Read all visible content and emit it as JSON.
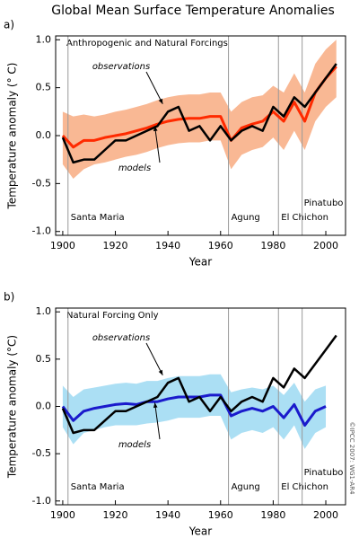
{
  "credit": "©IPCC 2007: WG1-AR4",
  "chart_data": [
    {
      "type": "line",
      "title": "Global Mean Surface Temperature Anomalies",
      "panel_label": "a)",
      "plot_label": "Anthropogenic and Natural Forcings",
      "xlabel": "Year",
      "ylabel": "Temperature anomaly (° C)",
      "xlim": [
        1897.3,
        2007.5
      ],
      "ylim": [
        -1.04,
        1.04
      ],
      "xticks": [
        1900,
        1920,
        1940,
        1960,
        1980,
        2000
      ],
      "yticks": [
        {
          "value": 1,
          "label": "1.0"
        },
        0.5,
        {
          "value": 0,
          "label": "0.0"
        },
        -0.5,
        {
          "value": -1,
          "label": "-1.0"
        }
      ],
      "x": [
        1900,
        1904,
        1908,
        1912,
        1916,
        1920,
        1924,
        1928,
        1932,
        1936,
        1940,
        1944,
        1948,
        1952,
        1956,
        1960,
        1964,
        1968,
        1972,
        1976,
        1980,
        1984,
        1988,
        1992,
        1996,
        2000,
        2004
      ],
      "series": [
        {
          "name": "observations",
          "color": "#000000",
          "values": [
            -0.02,
            -0.28,
            -0.25,
            -0.25,
            -0.15,
            -0.05,
            -0.05,
            0.0,
            0.05,
            0.1,
            0.25,
            0.3,
            0.05,
            0.1,
            -0.05,
            0.1,
            -0.05,
            0.05,
            0.1,
            0.05,
            0.3,
            0.2,
            0.4,
            0.3,
            0.45,
            0.6,
            0.75
          ]
        },
        {
          "name": "models",
          "color": "#ff2a00",
          "band_color": "#f7a070",
          "values": [
            0,
            -0.12,
            -0.05,
            -0.05,
            -0.02,
            0,
            0.02,
            0.05,
            0.08,
            0.12,
            0.15,
            0.17,
            0.18,
            0.18,
            0.2,
            0.2,
            -0.05,
            0.08,
            0.12,
            0.15,
            0.25,
            0.15,
            0.35,
            0.15,
            0.45,
            0.6,
            0.72
          ],
          "band_low": [
            -0.3,
            -0.45,
            -0.35,
            -0.3,
            -0.28,
            -0.25,
            -0.22,
            -0.2,
            -0.17,
            -0.13,
            -0.1,
            -0.08,
            -0.07,
            -0.07,
            -0.05,
            -0.05,
            -0.35,
            -0.2,
            -0.15,
            -0.12,
            -0.02,
            -0.15,
            0.05,
            -0.15,
            0.15,
            0.3,
            0.4
          ],
          "band_high": [
            0.25,
            0.2,
            0.22,
            0.2,
            0.22,
            0.25,
            0.27,
            0.3,
            0.33,
            0.37,
            0.4,
            0.42,
            0.43,
            0.43,
            0.45,
            0.45,
            0.25,
            0.35,
            0.4,
            0.42,
            0.52,
            0.45,
            0.65,
            0.45,
            0.75,
            0.9,
            1.0
          ]
        }
      ],
      "events": [
        {
          "x": 1902,
          "label": "Santa Maria"
        },
        {
          "x": 1963,
          "label": "Agung"
        },
        {
          "x": 1982,
          "label": "El Chichon"
        },
        {
          "x": 1991,
          "label": "Pinatubo"
        }
      ]
    },
    {
      "type": "line",
      "panel_label": "b)",
      "plot_label": "Natural Forcing Only",
      "xlabel": "Year",
      "ylabel": "Temperature anomaly (°C)",
      "xlim": [
        1897.3,
        2007.5
      ],
      "ylim": [
        -1.04,
        1.04
      ],
      "xticks": [
        1900,
        1920,
        1940,
        1960,
        1980,
        2000
      ],
      "yticks": [
        {
          "value": 1,
          "label": "1.0"
        },
        0.5,
        {
          "value": 0,
          "label": "0.0"
        },
        -0.5,
        {
          "value": -1,
          "label": "-1.0"
        }
      ],
      "x": [
        1900,
        1904,
        1908,
        1912,
        1916,
        1920,
        1924,
        1928,
        1932,
        1936,
        1940,
        1944,
        1948,
        1952,
        1956,
        1960,
        1964,
        1968,
        1972,
        1976,
        1980,
        1984,
        1988,
        1992,
        1996,
        2000,
        2004
      ],
      "series": [
        {
          "name": "observations",
          "color": "#000000",
          "values": [
            -0.02,
            -0.28,
            -0.25,
            -0.25,
            -0.15,
            -0.05,
            -0.05,
            0.0,
            0.05,
            0.1,
            0.25,
            0.3,
            0.05,
            0.1,
            -0.05,
            0.1,
            -0.05,
            0.05,
            0.1,
            0.05,
            0.3,
            0.2,
            0.4,
            0.3,
            0.45,
            0.6,
            0.75
          ]
        },
        {
          "name": "models",
          "color": "#1a1acc",
          "band_color": "#8fd4f0",
          "values": [
            0,
            -0.15,
            -0.05,
            -0.02,
            0,
            0.02,
            0.03,
            0.02,
            0.05,
            0.05,
            0.08,
            0.1,
            0.1,
            0.1,
            0.12,
            0.12,
            -0.1,
            -0.05,
            -0.02,
            -0.05,
            0,
            -0.12,
            0.02,
            -0.2,
            -0.05,
            0,
            null
          ],
          "band_low": [
            -0.22,
            -0.4,
            -0.28,
            -0.25,
            -0.22,
            -0.2,
            -0.2,
            -0.2,
            -0.18,
            -0.17,
            -0.15,
            -0.12,
            -0.12,
            -0.12,
            -0.1,
            -0.1,
            -0.35,
            -0.28,
            -0.25,
            -0.28,
            -0.22,
            -0.35,
            -0.2,
            -0.45,
            -0.28,
            -0.22,
            null
          ],
          "band_high": [
            0.22,
            0.1,
            0.18,
            0.2,
            0.22,
            0.24,
            0.25,
            0.24,
            0.27,
            0.27,
            0.3,
            0.32,
            0.32,
            0.32,
            0.34,
            0.34,
            0.15,
            0.18,
            0.2,
            0.18,
            0.22,
            0.12,
            0.25,
            0.05,
            0.18,
            0.22,
            null
          ]
        }
      ],
      "events": [
        {
          "x": 1902,
          "label": "Santa Maria"
        },
        {
          "x": 1963,
          "label": "Agung"
        },
        {
          "x": 1982,
          "label": "El Chichon"
        },
        {
          "x": 1991,
          "label": "Pinatubo"
        }
      ]
    }
  ]
}
